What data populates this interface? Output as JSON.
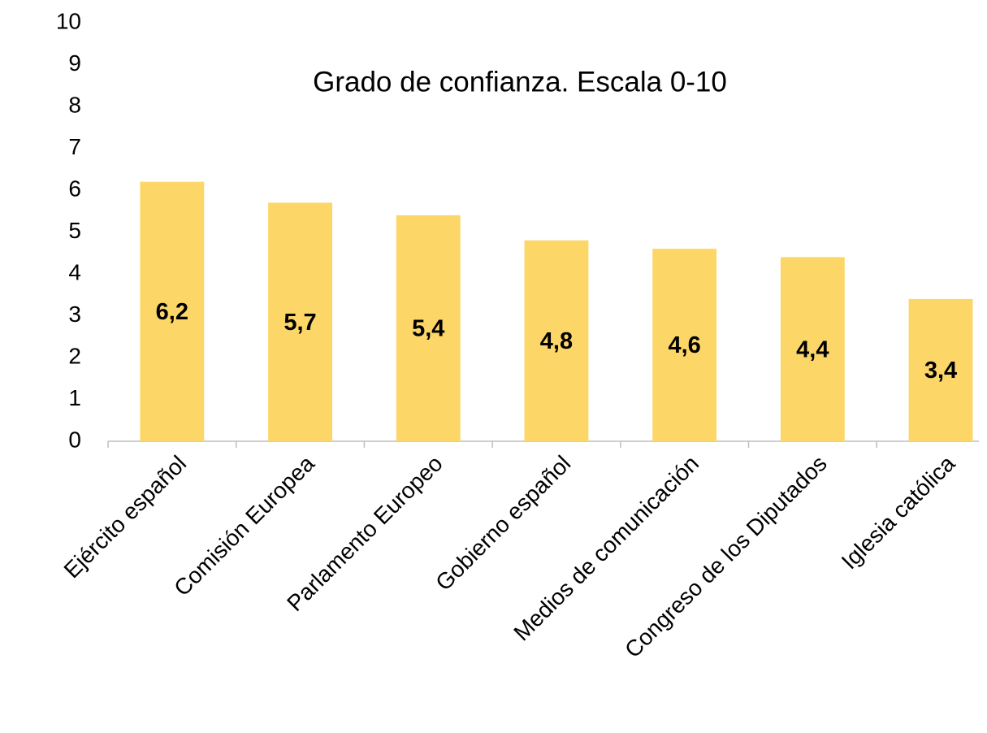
{
  "chart_data": {
    "type": "bar",
    "title": "Grado de confianza. Escala 0-10",
    "categories": [
      "Ejército español",
      "Comisión Europea",
      "Parlamento Europeo",
      "Gobierno español",
      "Medios de comunicación",
      "Congreso de los Diputados",
      "Iglesia católica"
    ],
    "values": [
      6.2,
      5.7,
      5.4,
      4.8,
      4.6,
      4.4,
      3.4
    ],
    "value_labels": [
      "6,2",
      "5,7",
      "5,4",
      "4,8",
      "4,6",
      "4,4",
      "3,4"
    ],
    "color": "#fdd668",
    "ylim": [
      0,
      10
    ],
    "yticks": [
      0,
      1,
      2,
      3,
      4,
      5,
      6,
      7,
      8,
      9,
      10
    ],
    "grid": false
  }
}
